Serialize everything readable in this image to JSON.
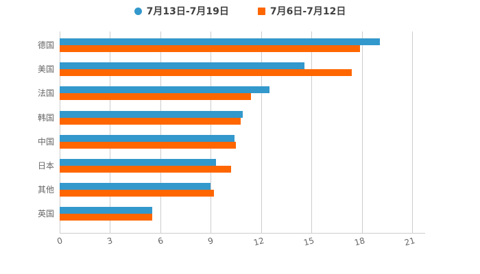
{
  "legend": {
    "items": [
      {
        "label": "7月13日-7月19日",
        "color": "#3398cc",
        "shape": "circle"
      },
      {
        "label": "7月6日-7月12日",
        "color": "#ff6600",
        "shape": "square"
      }
    ]
  },
  "chart_data": {
    "type": "bar",
    "orientation": "horizontal",
    "title": "",
    "xlabel": "",
    "ylabel": "",
    "categories": [
      "德国",
      "美国",
      "法国",
      "韩国",
      "中国",
      "日本",
      "其他",
      "英国"
    ],
    "series": [
      {
        "name": "7月13日-7月19日",
        "color": "#3398cc",
        "values": [
          19.1,
          14.6,
          12.5,
          10.9,
          10.4,
          9.3,
          9.0,
          5.5
        ]
      },
      {
        "name": "7月6日-7月12日",
        "color": "#ff6600",
        "values": [
          17.9,
          17.4,
          11.4,
          10.8,
          10.5,
          10.2,
          9.2,
          5.5
        ]
      }
    ],
    "xlim": [
      0,
      21
    ],
    "x_ticks": [
      0,
      3,
      6,
      9,
      12,
      15,
      18,
      21
    ],
    "grid": true,
    "legend_position": "top"
  },
  "colors": {
    "grid": "#cccccc",
    "axis": "#cccccc",
    "label": "#666666",
    "legend_text": "#404040",
    "background": "#ffffff"
  }
}
